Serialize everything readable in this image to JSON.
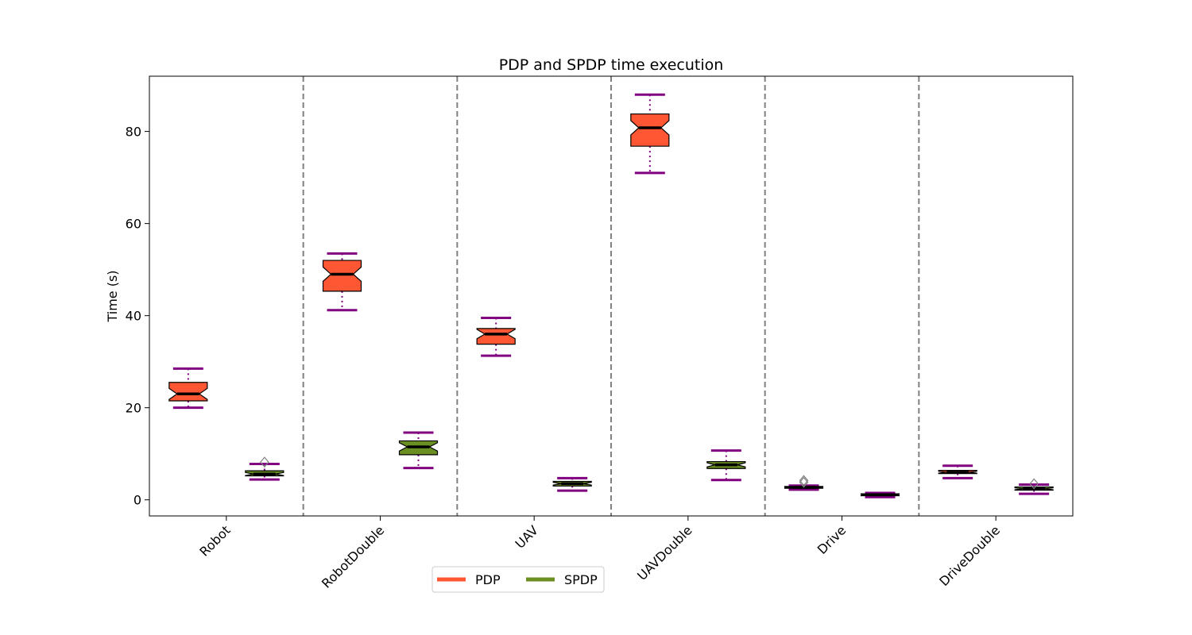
{
  "chart_data": {
    "type": "boxplot",
    "title": "PDP and SPDP time execution",
    "xlabel": "",
    "ylabel": "Time (s)",
    "ylim": [
      -3.5,
      92
    ],
    "yticks": [
      0,
      20,
      40,
      60,
      80
    ],
    "categories": [
      "Robot",
      "RobotDouble",
      "UAV",
      "UAVDouble",
      "Drive",
      "DriveDouble"
    ],
    "grid": false,
    "legend_position": "bottom-center",
    "colors": {
      "PDP": "#ff5733",
      "SPDP": "#6b8e23",
      "whisker": "#800080",
      "median": "#000000",
      "separator": "#808080",
      "flier": "#808080"
    },
    "series": [
      {
        "name": "PDP",
        "boxes": [
          {
            "whislo": 20.0,
            "q1": 21.5,
            "med": 23.0,
            "q3": 25.5,
            "whishi": 28.5,
            "fliers": []
          },
          {
            "whislo": 41.2,
            "q1": 45.3,
            "med": 49.0,
            "q3": 52.0,
            "whishi": 53.5,
            "fliers": []
          },
          {
            "whislo": 31.3,
            "q1": 33.8,
            "med": 36.0,
            "q3": 37.2,
            "whishi": 39.5,
            "fliers": []
          },
          {
            "whislo": 71.0,
            "q1": 76.8,
            "med": 80.8,
            "q3": 83.8,
            "whishi": 88.0,
            "fliers": []
          },
          {
            "whislo": 2.2,
            "q1": 2.5,
            "med": 2.7,
            "q3": 2.9,
            "whishi": 3.1,
            "fliers": [
              3.8,
              4.2
            ]
          },
          {
            "whislo": 4.7,
            "q1": 5.7,
            "med": 6.0,
            "q3": 6.4,
            "whishi": 7.4,
            "fliers": []
          }
        ]
      },
      {
        "name": "SPDP",
        "boxes": [
          {
            "whislo": 4.4,
            "q1": 5.2,
            "med": 5.6,
            "q3": 6.3,
            "whishi": 7.8,
            "fliers": [
              8.2
            ]
          },
          {
            "whislo": 6.9,
            "q1": 9.8,
            "med": 11.5,
            "q3": 12.8,
            "whishi": 14.6,
            "fliers": []
          },
          {
            "whislo": 2.0,
            "q1": 3.0,
            "med": 3.5,
            "q3": 4.0,
            "whishi": 4.7,
            "fliers": []
          },
          {
            "whislo": 4.3,
            "q1": 6.8,
            "med": 7.6,
            "q3": 8.3,
            "whishi": 10.7,
            "fliers": []
          },
          {
            "whislo": 0.6,
            "q1": 0.9,
            "med": 1.1,
            "q3": 1.3,
            "whishi": 1.5,
            "fliers": []
          },
          {
            "whislo": 1.3,
            "q1": 2.1,
            "med": 2.4,
            "q3": 2.8,
            "whishi": 3.3,
            "fliers": [
              3.5
            ]
          }
        ]
      }
    ]
  }
}
